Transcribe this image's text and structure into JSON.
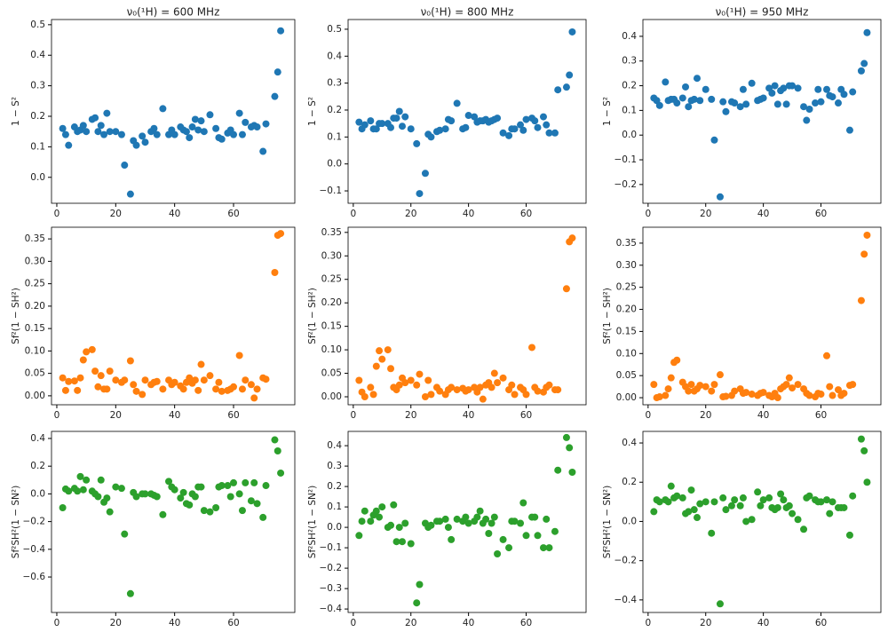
{
  "chart_data": [
    {
      "type": "scatter",
      "title": "ν₀(¹H) = 600 MHz",
      "y_label": "1 − S²",
      "color": "#1f77b4",
      "xlim": [
        -1.8,
        80.8
      ],
      "xticks": [
        0,
        20,
        40,
        60
      ],
      "ylim": [
        -0.085,
        0.517
      ],
      "yticks": [
        {
          "value": 0,
          "label": "0.0"
        },
        0.1,
        0.2,
        0.3,
        0.4,
        0.5
      ],
      "x": [
        2,
        3,
        4,
        6,
        7,
        8,
        9,
        10,
        12,
        13,
        14,
        15,
        16,
        17,
        18,
        20,
        22,
        23,
        25,
        26,
        27,
        29,
        30,
        32,
        33,
        34,
        36,
        38,
        39,
        40,
        42,
        43,
        44,
        45,
        46,
        47,
        48,
        49,
        50,
        52,
        54,
        55,
        56,
        58,
        59,
        60,
        62,
        63,
        64,
        66,
        67,
        68,
        70,
        71,
        74,
        75,
        76
      ],
      "values": [
        0.16,
        0.14,
        0.105,
        0.165,
        0.15,
        0.155,
        0.17,
        0.15,
        0.19,
        0.195,
        0.15,
        0.17,
        0.14,
        0.21,
        0.15,
        0.15,
        0.14,
        0.04,
        -0.055,
        0.12,
        0.105,
        0.135,
        0.115,
        0.15,
        0.16,
        0.14,
        0.225,
        0.14,
        0.155,
        0.14,
        0.165,
        0.155,
        0.15,
        0.13,
        0.165,
        0.19,
        0.155,
        0.185,
        0.15,
        0.205,
        0.16,
        0.13,
        0.125,
        0.145,
        0.155,
        0.14,
        0.21,
        0.14,
        0.18,
        0.165,
        0.17,
        0.165,
        0.085,
        0.175,
        0.265,
        0.345,
        0.48
      ]
    },
    {
      "type": "scatter",
      "title": "ν₀(¹H) = 800 MHz",
      "y_label": "1 − S²",
      "color": "#1f77b4",
      "xlim": [
        -1.8,
        80.8
      ],
      "xticks": [
        0,
        20,
        40,
        60
      ],
      "ylim": [
        -0.146,
        0.536
      ],
      "yticks": [
        {
          "value": -0.1,
          "label": "−0.1"
        },
        {
          "value": 0,
          "label": "0.0"
        },
        0.1,
        0.2,
        0.3,
        0.4,
        0.5
      ],
      "x": [
        2,
        3,
        4,
        6,
        7,
        8,
        9,
        10,
        12,
        13,
        14,
        15,
        16,
        17,
        18,
        20,
        22,
        23,
        25,
        26,
        27,
        29,
        30,
        32,
        33,
        34,
        36,
        38,
        39,
        40,
        42,
        43,
        44,
        45,
        46,
        47,
        48,
        49,
        50,
        52,
        54,
        55,
        56,
        58,
        59,
        60,
        62,
        63,
        64,
        66,
        67,
        68,
        70,
        71,
        74,
        75,
        76
      ],
      "values": [
        0.155,
        0.13,
        0.145,
        0.16,
        0.13,
        0.13,
        0.15,
        0.15,
        0.15,
        0.135,
        0.17,
        0.17,
        0.195,
        0.14,
        0.175,
        0.13,
        0.075,
        -0.11,
        -0.035,
        0.11,
        0.1,
        0.12,
        0.125,
        0.13,
        0.165,
        0.16,
        0.225,
        0.13,
        0.135,
        0.18,
        0.175,
        0.155,
        0.16,
        0.16,
        0.165,
        0.155,
        0.16,
        0.165,
        0.17,
        0.115,
        0.105,
        0.13,
        0.13,
        0.145,
        0.125,
        0.165,
        0.17,
        0.16,
        0.135,
        0.175,
        0.145,
        0.115,
        0.115,
        0.275,
        0.285,
        0.33,
        0.49
      ]
    },
    {
      "type": "scatter",
      "title": "ν₀(¹H) = 950 MHz",
      "y_label": "1 − S²",
      "color": "#1f77b4",
      "xlim": [
        -1.8,
        80.8
      ],
      "xticks": [
        0,
        20,
        40,
        60
      ],
      "ylim": [
        -0.276,
        0.468
      ],
      "yticks": [
        {
          "value": -0.2,
          "label": "−0.2"
        },
        {
          "value": -0.1,
          "label": "−0.1"
        },
        {
          "value": 0,
          "label": "0.0"
        },
        0.1,
        0.2,
        0.3,
        0.4
      ],
      "x": [
        2,
        3,
        4,
        6,
        7,
        8,
        9,
        10,
        12,
        13,
        14,
        15,
        16,
        17,
        18,
        20,
        22,
        23,
        25,
        26,
        27,
        29,
        30,
        32,
        33,
        34,
        36,
        38,
        39,
        40,
        42,
        43,
        44,
        45,
        46,
        47,
        48,
        49,
        50,
        52,
        54,
        55,
        56,
        58,
        59,
        60,
        62,
        63,
        64,
        66,
        67,
        68,
        70,
        71,
        74,
        75,
        76
      ],
      "values": [
        0.15,
        0.14,
        0.12,
        0.215,
        0.14,
        0.145,
        0.145,
        0.13,
        0.15,
        0.195,
        0.115,
        0.14,
        0.145,
        0.23,
        0.14,
        0.185,
        0.145,
        -0.02,
        -0.25,
        0.135,
        0.095,
        0.135,
        0.13,
        0.115,
        0.185,
        0.125,
        0.21,
        0.14,
        0.145,
        0.15,
        0.19,
        0.17,
        0.2,
        0.125,
        0.18,
        0.19,
        0.125,
        0.2,
        0.2,
        0.19,
        0.115,
        0.06,
        0.105,
        0.13,
        0.185,
        0.135,
        0.185,
        0.16,
        0.155,
        0.13,
        0.185,
        0.165,
        0.02,
        0.175,
        0.26,
        0.29,
        0.415
      ]
    },
    {
      "type": "scatter",
      "y_label": "Sf²(1 − SH²)",
      "color": "#ff7f0e",
      "xlim": [
        -1.8,
        80.8
      ],
      "xticks": [
        0,
        20,
        40,
        60
      ],
      "ylim": [
        -0.02,
        0.376
      ],
      "yticks": [
        {
          "value": 0,
          "label": "0.00"
        },
        0.05,
        {
          "value": 0.1,
          "label": "0.10"
        },
        0.15,
        {
          "value": 0.2,
          "label": "0.20"
        },
        0.25,
        {
          "value": 0.3,
          "label": "0.30"
        },
        0.35
      ],
      "x": [
        2,
        3,
        4,
        6,
        7,
        8,
        9,
        10,
        12,
        13,
        14,
        15,
        16,
        17,
        18,
        20,
        22,
        23,
        25,
        26,
        27,
        29,
        30,
        32,
        33,
        34,
        36,
        38,
        39,
        40,
        42,
        43,
        44,
        45,
        46,
        47,
        48,
        49,
        50,
        52,
        54,
        55,
        56,
        58,
        59,
        60,
        62,
        63,
        64,
        66,
        67,
        68,
        70,
        71,
        74,
        75,
        76
      ],
      "values": [
        0.04,
        0.012,
        0.032,
        0.033,
        0.012,
        0.04,
        0.08,
        0.098,
        0.103,
        0.055,
        0.02,
        0.045,
        0.015,
        0.015,
        0.055,
        0.035,
        0.03,
        0.035,
        0.078,
        0.025,
        0.01,
        0.003,
        0.035,
        0.025,
        0.03,
        0.032,
        0.015,
        0.035,
        0.025,
        0.03,
        0.022,
        0.015,
        0.03,
        0.04,
        0.028,
        0.035,
        0.012,
        0.07,
        0.035,
        0.045,
        0.015,
        0.03,
        0.01,
        0.012,
        0.015,
        0.02,
        0.09,
        0.015,
        0.035,
        0.025,
        -0.005,
        0.015,
        0.04,
        0.037,
        0.275,
        0.358,
        0.362
      ]
    },
    {
      "type": "scatter",
      "y_label": "Sf²(1 − SH²)",
      "color": "#ff7f0e",
      "xlim": [
        -1.8,
        80.8
      ],
      "xticks": [
        0,
        20,
        40,
        60
      ],
      "ylim": [
        -0.017,
        0.361
      ],
      "yticks": [
        {
          "value": 0,
          "label": "0.00"
        },
        0.05,
        {
          "value": 0.1,
          "label": "0.10"
        },
        0.15,
        {
          "value": 0.2,
          "label": "0.20"
        },
        0.25,
        {
          "value": 0.3,
          "label": "0.30"
        },
        0.35
      ],
      "x": [
        2,
        3,
        4,
        6,
        7,
        8,
        9,
        10,
        12,
        13,
        14,
        15,
        16,
        17,
        18,
        20,
        22,
        23,
        25,
        26,
        27,
        29,
        30,
        32,
        33,
        34,
        36,
        38,
        39,
        40,
        42,
        43,
        44,
        45,
        46,
        47,
        48,
        49,
        50,
        52,
        54,
        55,
        56,
        58,
        59,
        60,
        62,
        63,
        64,
        66,
        67,
        68,
        70,
        71,
        74,
        75,
        76
      ],
      "values": [
        0.035,
        0.01,
        0.0,
        0.02,
        0.005,
        0.065,
        0.098,
        0.08,
        0.1,
        0.06,
        0.02,
        0.015,
        0.025,
        0.04,
        0.03,
        0.035,
        0.025,
        0.048,
        0.0,
        0.035,
        0.005,
        0.02,
        0.012,
        0.005,
        0.015,
        0.02,
        0.015,
        0.018,
        0.012,
        0.015,
        0.02,
        0.01,
        0.02,
        -0.005,
        0.025,
        0.03,
        0.02,
        0.05,
        0.03,
        0.04,
        0.015,
        0.025,
        0.005,
        0.02,
        0.015,
        0.005,
        0.105,
        0.02,
        0.012,
        0.01,
        0.02,
        0.025,
        0.015,
        0.015,
        0.23,
        0.33,
        0.338
      ]
    },
    {
      "type": "scatter",
      "y_label": "Sf²(1 − SH²)",
      "color": "#ff7f0e",
      "xlim": [
        -1.8,
        80.8
      ],
      "xticks": [
        0,
        20,
        40,
        60
      ],
      "ylim": [
        -0.016,
        0.386
      ],
      "yticks": [
        {
          "value": 0,
          "label": "0.00"
        },
        0.05,
        {
          "value": 0.1,
          "label": "0.10"
        },
        0.15,
        {
          "value": 0.2,
          "label": "0.20"
        },
        0.25,
        {
          "value": 0.3,
          "label": "0.30"
        },
        0.35
      ],
      "x": [
        2,
        3,
        4,
        6,
        7,
        8,
        9,
        10,
        12,
        13,
        14,
        15,
        16,
        17,
        18,
        20,
        22,
        23,
        25,
        26,
        27,
        29,
        30,
        32,
        33,
        34,
        36,
        38,
        39,
        40,
        42,
        43,
        44,
        45,
        46,
        47,
        48,
        49,
        50,
        52,
        54,
        55,
        56,
        58,
        59,
        60,
        62,
        63,
        64,
        66,
        67,
        68,
        70,
        71,
        74,
        75,
        76
      ],
      "values": [
        0.03,
        0.0,
        0.002,
        0.005,
        0.02,
        0.045,
        0.08,
        0.085,
        0.035,
        0.025,
        0.015,
        0.03,
        0.015,
        0.02,
        0.028,
        0.025,
        0.015,
        0.03,
        0.052,
        0.002,
        0.003,
        0.005,
        0.015,
        0.02,
        0.01,
        0.012,
        0.008,
        0.005,
        0.01,
        0.012,
        0.005,
        0.002,
        0.01,
        0.0,
        0.02,
        0.025,
        0.03,
        0.045,
        0.022,
        0.03,
        0.02,
        0.01,
        0.005,
        0.002,
        0.01,
        0.008,
        0.095,
        0.025,
        0.005,
        0.018,
        0.005,
        0.01,
        0.028,
        0.03,
        0.22,
        0.325,
        0.368
      ]
    },
    {
      "type": "scatter",
      "y_label": "Sf²SH²(1 − SN²)",
      "color": "#2ca02c",
      "xlim": [
        -1.8,
        80.8
      ],
      "xticks": [
        0,
        20,
        40,
        60
      ],
      "ylim": [
        -0.856,
        0.451
      ],
      "yticks": [
        {
          "value": -0.6,
          "label": "−0.6"
        },
        {
          "value": -0.4,
          "label": "−0.4"
        },
        {
          "value": -0.2,
          "label": "−0.2"
        },
        {
          "value": 0,
          "label": "0.0"
        },
        0.2,
        0.4
      ],
      "x": [
        2,
        3,
        4,
        6,
        7,
        8,
        9,
        10,
        12,
        13,
        14,
        15,
        16,
        17,
        18,
        20,
        22,
        23,
        25,
        26,
        27,
        29,
        30,
        32,
        33,
        34,
        36,
        38,
        39,
        40,
        42,
        43,
        44,
        45,
        46,
        47,
        48,
        49,
        50,
        52,
        54,
        55,
        56,
        58,
        59,
        60,
        62,
        63,
        64,
        66,
        67,
        68,
        70,
        71,
        74,
        75,
        76
      ],
      "values": [
        -0.1,
        0.035,
        0.02,
        0.04,
        0.02,
        0.125,
        0.03,
        0.1,
        0.02,
        0.0,
        -0.02,
        0.1,
        -0.06,
        -0.03,
        -0.13,
        0.05,
        0.04,
        -0.29,
        -0.72,
        0.01,
        -0.02,
        0.0,
        0.0,
        0.0,
        -0.01,
        -0.02,
        -0.15,
        0.09,
        0.05,
        0.03,
        -0.03,
        0.01,
        -0.07,
        -0.08,
        0.0,
        -0.02,
        0.05,
        0.05,
        -0.12,
        -0.13,
        -0.1,
        0.05,
        0.06,
        0.06,
        -0.02,
        0.08,
        0.0,
        -0.12,
        0.08,
        -0.05,
        0.08,
        -0.07,
        -0.17,
        0.06,
        0.39,
        0.31,
        0.15
      ]
    },
    {
      "type": "scatter",
      "y_label": "Sf²SH²(1 − SN²)",
      "color": "#2ca02c",
      "xlim": [
        -1.8,
        80.8
      ],
      "xticks": [
        0,
        20,
        40,
        60
      ],
      "ylim": [
        -0.417,
        0.47
      ],
      "yticks": [
        {
          "value": -0.4,
          "label": "−0.4"
        },
        {
          "value": -0.3,
          "label": "−0.3"
        },
        {
          "value": -0.2,
          "label": "−0.2"
        },
        {
          "value": -0.1,
          "label": "−0.1"
        },
        {
          "value": 0,
          "label": "0.0"
        },
        0.1,
        0.2,
        0.3,
        0.4
      ],
      "x": [
        2,
        3,
        4,
        6,
        7,
        8,
        9,
        10,
        12,
        13,
        14,
        15,
        16,
        17,
        18,
        20,
        22,
        23,
        25,
        26,
        27,
        29,
        30,
        32,
        33,
        34,
        36,
        38,
        39,
        40,
        42,
        43,
        44,
        45,
        46,
        47,
        48,
        49,
        50,
        52,
        54,
        55,
        56,
        58,
        59,
        60,
        62,
        63,
        64,
        66,
        67,
        68,
        70,
        71,
        74,
        75,
        76
      ],
      "values": [
        -0.04,
        0.03,
        0.08,
        0.03,
        0.06,
        0.08,
        0.05,
        0.1,
        0.0,
        0.01,
        0.11,
        -0.07,
        0.0,
        -0.07,
        0.02,
        -0.08,
        -0.37,
        -0.28,
        0.02,
        0.0,
        0.01,
        0.03,
        0.03,
        0.04,
        0.0,
        -0.06,
        0.04,
        0.03,
        0.05,
        0.02,
        0.03,
        0.05,
        0.08,
        0.02,
        0.04,
        -0.03,
        0.02,
        0.05,
        -0.13,
        -0.06,
        -0.1,
        0.03,
        0.03,
        0.02,
        0.12,
        -0.04,
        0.05,
        0.05,
        -0.04,
        -0.1,
        0.04,
        -0.1,
        -0.02,
        0.28,
        0.44,
        0.39,
        0.27
      ]
    },
    {
      "type": "scatter",
      "y_label": "Sf²SH²(1 − SN²)",
      "color": "#2ca02c",
      "xlim": [
        -1.8,
        80.8
      ],
      "xticks": [
        0,
        20,
        40,
        60
      ],
      "ylim": [
        -0.464,
        0.459
      ],
      "yticks": [
        {
          "value": -0.4,
          "label": "−0.4"
        },
        {
          "value": -0.2,
          "label": "−0.2"
        },
        {
          "value": 0,
          "label": "0.0"
        },
        0.2,
        0.4
      ],
      "x": [
        2,
        3,
        4,
        6,
        7,
        8,
        9,
        10,
        12,
        13,
        14,
        15,
        16,
        17,
        18,
        20,
        22,
        23,
        25,
        26,
        27,
        29,
        30,
        32,
        33,
        34,
        36,
        38,
        39,
        40,
        42,
        43,
        44,
        45,
        46,
        47,
        48,
        49,
        50,
        52,
        54,
        55,
        56,
        58,
        59,
        60,
        62,
        63,
        64,
        66,
        67,
        68,
        70,
        71,
        74,
        75,
        76
      ],
      "values": [
        0.05,
        0.11,
        0.1,
        0.11,
        0.1,
        0.18,
        0.12,
        0.13,
        0.12,
        0.04,
        0.05,
        0.16,
        0.06,
        0.02,
        0.09,
        0.1,
        -0.06,
        0.1,
        -0.42,
        0.12,
        0.06,
        0.08,
        0.11,
        0.08,
        0.12,
        0.0,
        0.01,
        0.15,
        0.08,
        0.11,
        0.12,
        0.07,
        0.06,
        0.07,
        0.14,
        0.11,
        0.07,
        0.08,
        0.04,
        0.01,
        -0.04,
        0.12,
        0.13,
        0.11,
        0.1,
        0.1,
        0.11,
        0.04,
        0.1,
        0.07,
        0.07,
        0.07,
        -0.07,
        0.13,
        0.42,
        0.36,
        0.2
      ]
    }
  ]
}
